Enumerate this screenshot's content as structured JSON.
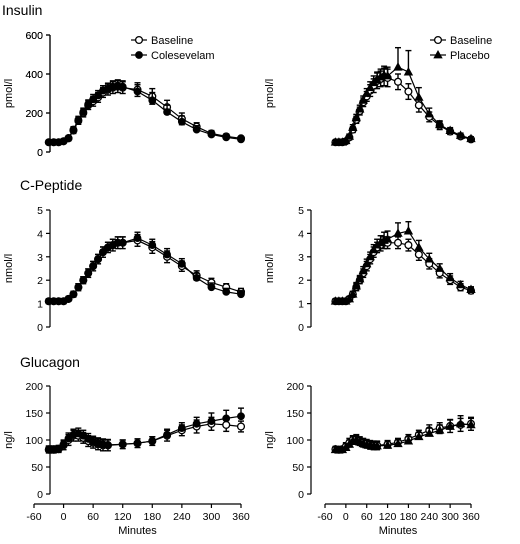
{
  "rows": [
    {
      "title": "Insulin",
      "ylabel": "pmol/l"
    },
    {
      "title": "C-Peptide",
      "ylabel": "nmol/l"
    },
    {
      "title": "Glucagon",
      "ylabel": "ng/l"
    }
  ],
  "xlabel": "Minutes",
  "chart_data": [
    {
      "type": "line",
      "section": "Insulin",
      "ylabel": "pmol/l",
      "xlabel": "",
      "ylim": [
        0,
        600
      ],
      "yticks": [
        0,
        200,
        400,
        600
      ],
      "xlim": [
        -60,
        360
      ],
      "xticks": [
        -60,
        0,
        60,
        120,
        180,
        240,
        300,
        360
      ],
      "show_xticks": false,
      "legend_position": "top-center",
      "x": [
        -30,
        -20,
        -10,
        0,
        10,
        20,
        30,
        40,
        50,
        60,
        70,
        80,
        90,
        100,
        110,
        120,
        150,
        180,
        210,
        240,
        270,
        300,
        330,
        360
      ],
      "series": [
        {
          "name": "Baseline",
          "marker": "circle-open",
          "values": [
            50,
            50,
            50,
            55,
            70,
            110,
            160,
            200,
            240,
            260,
            280,
            305,
            320,
            330,
            335,
            330,
            320,
            285,
            230,
            170,
            130,
            95,
            80,
            70
          ],
          "errors": [
            8,
            8,
            8,
            10,
            12,
            15,
            18,
            20,
            22,
            25,
            25,
            25,
            28,
            30,
            30,
            30,
            35,
            40,
            35,
            30,
            20,
            15,
            12,
            10
          ]
        },
        {
          "name": "Colesevelam",
          "marker": "circle-filled",
          "values": [
            50,
            50,
            50,
            55,
            72,
            115,
            165,
            205,
            245,
            270,
            290,
            315,
            325,
            335,
            340,
            335,
            310,
            265,
            205,
            155,
            115,
            90,
            75,
            65
          ],
          "errors": [
            8,
            8,
            8,
            10,
            12,
            15,
            18,
            20,
            22,
            25,
            25,
            25,
            28,
            30,
            30,
            30,
            35,
            40,
            35,
            30,
            20,
            15,
            12,
            10
          ]
        }
      ]
    },
    {
      "type": "line",
      "section": "Insulin",
      "ylabel": "pmol/l",
      "xlabel": "",
      "ylim": [
        0,
        600
      ],
      "yticks": [
        0,
        200,
        400,
        600
      ],
      "xlim": [
        -60,
        360
      ],
      "xticks": [
        -60,
        0,
        60,
        120,
        180,
        240,
        300,
        360
      ],
      "show_xticks": false,
      "legend_position": "top-right",
      "x": [
        -30,
        -20,
        -10,
        0,
        10,
        20,
        30,
        40,
        50,
        60,
        70,
        80,
        90,
        100,
        110,
        120,
        150,
        180,
        210,
        240,
        270,
        300,
        330,
        360
      ],
      "series": [
        {
          "name": "Baseline",
          "marker": "circle-open",
          "values": [
            50,
            50,
            50,
            55,
            75,
            115,
            165,
            210,
            255,
            285,
            315,
            340,
            365,
            375,
            385,
            380,
            360,
            310,
            240,
            180,
            135,
            105,
            80,
            65
          ],
          "errors": [
            8,
            8,
            8,
            10,
            12,
            15,
            18,
            20,
            22,
            25,
            30,
            35,
            40,
            40,
            45,
            45,
            40,
            40,
            35,
            25,
            20,
            15,
            12,
            10
          ]
        },
        {
          "name": "Placebo",
          "marker": "triangle",
          "values": [
            50,
            50,
            50,
            58,
            80,
            125,
            175,
            220,
            265,
            300,
            330,
            355,
            370,
            385,
            395,
            390,
            435,
            410,
            280,
            195,
            140,
            110,
            85,
            68
          ],
          "errors": [
            8,
            8,
            8,
            10,
            12,
            15,
            18,
            20,
            22,
            25,
            30,
            35,
            40,
            40,
            45,
            45,
            100,
            110,
            50,
            30,
            20,
            15,
            12,
            10
          ]
        }
      ]
    },
    {
      "type": "line",
      "section": "C-Peptide",
      "ylabel": "nmol/l",
      "xlabel": "",
      "ylim": [
        0,
        5
      ],
      "yticks": [
        0,
        1,
        2,
        3,
        4,
        5
      ],
      "xlim": [
        -60,
        360
      ],
      "xticks": [
        -60,
        0,
        60,
        120,
        180,
        240,
        300,
        360
      ],
      "show_xticks": false,
      "x": [
        -30,
        -20,
        -10,
        0,
        10,
        20,
        30,
        40,
        50,
        60,
        70,
        80,
        90,
        100,
        110,
        120,
        150,
        180,
        210,
        240,
        270,
        300,
        330,
        360
      ],
      "series": [
        {
          "name": "Baseline",
          "marker": "circle-open",
          "values": [
            1.1,
            1.1,
            1.1,
            1.1,
            1.2,
            1.4,
            1.7,
            2.0,
            2.3,
            2.6,
            2.9,
            3.2,
            3.4,
            3.5,
            3.6,
            3.6,
            3.7,
            3.4,
            3.0,
            2.6,
            2.2,
            1.9,
            1.7,
            1.5
          ],
          "errors": [
            0.1,
            0.1,
            0.1,
            0.1,
            0.1,
            0.12,
            0.15,
            0.15,
            0.18,
            0.2,
            0.2,
            0.22,
            0.22,
            0.25,
            0.25,
            0.25,
            0.25,
            0.25,
            0.25,
            0.22,
            0.2,
            0.18,
            0.15,
            0.15
          ]
        },
        {
          "name": "Colesevelam",
          "marker": "circle-filled",
          "values": [
            1.1,
            1.1,
            1.1,
            1.1,
            1.2,
            1.4,
            1.7,
            2.0,
            2.3,
            2.6,
            2.9,
            3.2,
            3.4,
            3.5,
            3.6,
            3.6,
            3.8,
            3.5,
            3.1,
            2.7,
            2.1,
            1.7,
            1.5,
            1.4
          ],
          "errors": [
            0.1,
            0.1,
            0.1,
            0.1,
            0.1,
            0.12,
            0.15,
            0.15,
            0.18,
            0.2,
            0.2,
            0.22,
            0.22,
            0.25,
            0.25,
            0.25,
            0.25,
            0.25,
            0.25,
            0.22,
            0.2,
            0.18,
            0.15,
            0.15
          ]
        }
      ]
    },
    {
      "type": "line",
      "section": "C-Peptide",
      "ylabel": "nmol/l",
      "xlabel": "",
      "ylim": [
        0,
        5
      ],
      "yticks": [
        0,
        1,
        2,
        3,
        4,
        5
      ],
      "xlim": [
        -60,
        360
      ],
      "xticks": [
        -60,
        0,
        60,
        120,
        180,
        240,
        300,
        360
      ],
      "show_xticks": false,
      "x": [
        -30,
        -20,
        -10,
        0,
        10,
        20,
        30,
        40,
        50,
        60,
        70,
        80,
        90,
        100,
        110,
        120,
        150,
        180,
        210,
        240,
        270,
        300,
        330,
        360
      ],
      "series": [
        {
          "name": "Baseline",
          "marker": "circle-open",
          "values": [
            1.1,
            1.1,
            1.1,
            1.1,
            1.2,
            1.4,
            1.7,
            2.0,
            2.3,
            2.6,
            2.9,
            3.2,
            3.4,
            3.5,
            3.6,
            3.6,
            3.6,
            3.5,
            3.1,
            2.7,
            2.3,
            2.0,
            1.7,
            1.55
          ],
          "errors": [
            0.1,
            0.1,
            0.1,
            0.1,
            0.1,
            0.12,
            0.15,
            0.15,
            0.18,
            0.2,
            0.2,
            0.22,
            0.22,
            0.25,
            0.25,
            0.25,
            0.25,
            0.25,
            0.25,
            0.22,
            0.2,
            0.18,
            0.15,
            0.12
          ]
        },
        {
          "name": "Placebo",
          "marker": "triangle",
          "values": [
            1.1,
            1.1,
            1.1,
            1.1,
            1.2,
            1.4,
            1.75,
            2.05,
            2.4,
            2.7,
            3.0,
            3.3,
            3.5,
            3.6,
            3.7,
            3.75,
            4.0,
            4.1,
            3.4,
            2.9,
            2.5,
            2.1,
            1.8,
            1.6
          ],
          "errors": [
            0.1,
            0.1,
            0.1,
            0.1,
            0.1,
            0.12,
            0.15,
            0.15,
            0.18,
            0.2,
            0.2,
            0.22,
            0.25,
            0.3,
            0.35,
            0.35,
            0.45,
            0.4,
            0.3,
            0.25,
            0.2,
            0.18,
            0.15,
            0.12
          ]
        }
      ]
    },
    {
      "type": "line",
      "section": "Glucagon",
      "ylabel": "ng/l",
      "xlabel": "Minutes",
      "ylim": [
        0,
        200
      ],
      "yticks": [
        0,
        50,
        100,
        150,
        200
      ],
      "xlim": [
        -60,
        360
      ],
      "xticks": [
        -60,
        0,
        60,
        120,
        180,
        240,
        300,
        360
      ],
      "show_xticks": true,
      "x": [
        -30,
        -20,
        -10,
        0,
        10,
        20,
        30,
        40,
        50,
        60,
        70,
        80,
        90,
        120,
        150,
        180,
        210,
        240,
        270,
        300,
        330,
        360
      ],
      "series": [
        {
          "name": "Baseline",
          "marker": "circle-open",
          "values": [
            82,
            82,
            83,
            90,
            100,
            108,
            108,
            104,
            98,
            95,
            92,
            90,
            90,
            92,
            94,
            98,
            108,
            118,
            125,
            130,
            128,
            125
          ],
          "errors": [
            6,
            6,
            6,
            8,
            10,
            10,
            10,
            10,
            10,
            10,
            10,
            10,
            10,
            8,
            8,
            8,
            10,
            10,
            12,
            12,
            12,
            10
          ]
        },
        {
          "name": "Colesevelam",
          "marker": "circle-filled",
          "values": [
            83,
            83,
            84,
            92,
            103,
            110,
            112,
            108,
            102,
            97,
            94,
            92,
            91,
            92,
            94,
            98,
            110,
            122,
            130,
            135,
            140,
            144
          ],
          "errors": [
            6,
            6,
            6,
            8,
            10,
            10,
            10,
            10,
            10,
            10,
            10,
            10,
            10,
            8,
            8,
            8,
            10,
            10,
            12,
            15,
            15,
            15
          ]
        }
      ]
    },
    {
      "type": "line",
      "section": "Glucagon",
      "ylabel": "ng/l",
      "xlabel": "Minutes",
      "ylim": [
        0,
        200
      ],
      "yticks": [
        0,
        50,
        100,
        150,
        200
      ],
      "xlim": [
        -60,
        360
      ],
      "xticks": [
        -60,
        0,
        60,
        120,
        180,
        240,
        300,
        360
      ],
      "show_xticks": true,
      "x": [
        -30,
        -20,
        -10,
        0,
        10,
        20,
        30,
        40,
        50,
        60,
        70,
        80,
        90,
        120,
        150,
        180,
        210,
        240,
        270,
        300,
        330,
        360
      ],
      "series": [
        {
          "name": "Baseline",
          "marker": "circle-open",
          "values": [
            83,
            82,
            83,
            88,
            95,
            100,
            102,
            98,
            95,
            93,
            91,
            90,
            90,
            92,
            96,
            102,
            110,
            118,
            122,
            126,
            128,
            130
          ],
          "errors": [
            5,
            5,
            5,
            7,
            8,
            8,
            8,
            8,
            8,
            8,
            8,
            8,
            8,
            7,
            7,
            8,
            8,
            10,
            10,
            12,
            12,
            12
          ]
        },
        {
          "name": "Placebo",
          "marker": "triangle",
          "values": [
            82,
            81,
            82,
            86,
            92,
            98,
            100,
            96,
            93,
            91,
            90,
            89,
            89,
            90,
            93,
            98,
            106,
            112,
            118,
            125,
            130,
            128
          ],
          "errors": [
            5,
            5,
            5,
            7,
            8,
            8,
            8,
            8,
            8,
            8,
            8,
            8,
            8,
            7,
            7,
            8,
            8,
            10,
            10,
            12,
            15,
            12
          ]
        }
      ]
    }
  ]
}
